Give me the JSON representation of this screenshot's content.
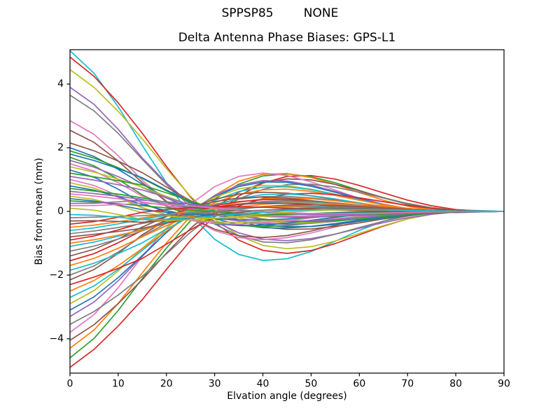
{
  "figure": {
    "suptitle": "SPPSP85        NONE",
    "title": "Delta Antenna Phase Biases: GPS-L1",
    "xlabel": "Elvation angle (degrees)",
    "ylabel": "Bias from mean (mm)"
  },
  "colors": {
    "background": "#ffffff",
    "axis": "#000000",
    "text": "#000000"
  },
  "chart_data": {
    "type": "line",
    "suptitle": "SPPSP85        NONE",
    "title": "Delta Antenna Phase Biases: GPS-L1",
    "xlabel": "Elvation angle (degrees)",
    "ylabel": "Bias from mean (mm)",
    "xlim": [
      0,
      90
    ],
    "ylim": [
      -5.08,
      5.08
    ],
    "xticks": [
      0,
      10,
      20,
      30,
      40,
      50,
      60,
      70,
      80,
      90
    ],
    "yticks": [
      -4,
      -2,
      0,
      2,
      4
    ],
    "grid": false,
    "legend": false,
    "n_series": 60,
    "x_sample_step_deg": 5,
    "line_width": 1.7,
    "palette": [
      "#1f77b4",
      "#ff7f0e",
      "#2ca02c",
      "#d62728",
      "#9467bd",
      "#8c564b",
      "#e377c2",
      "#7f7f7f",
      "#bcbd22",
      "#17becf"
    ],
    "description": "Approximately 60 unlabeled per-satellite delta antenna phase bias curves. Each curve begins at its start_bias (mm) at 0 deg elevation, crosses zero near 25-35 deg, overshoots with opposite sign to roughly -0.26 x start_bias near 45-50 deg (upper envelope about +1.3 mm, lower envelope about -1.0 mm), then decays smoothly so that all curves converge to 0 mm at 90 deg.",
    "envelope": {
      "start_bias_range_mm": [
        -4.9,
        5.05
      ],
      "zero_crossing_deg": [
        25,
        35
      ],
      "opposite_bump_peak_deg": [
        40,
        50
      ],
      "upper_bump_peak_mm": 1.3,
      "lower_bump_peak_mm": -1.0,
      "bias_at_90deg_mm": 0
    },
    "series": [
      {
        "start_bias": 5.05,
        "color_index": 9
      },
      {
        "start_bias": -4.9,
        "color_index": 3
      },
      {
        "start_bias": 4.85,
        "color_index": 3
      },
      {
        "start_bias": -4.6,
        "color_index": 2
      },
      {
        "start_bias": 4.45,
        "color_index": 8
      },
      {
        "start_bias": -4.3,
        "color_index": 1
      },
      {
        "start_bias": 3.9,
        "color_index": 4
      },
      {
        "start_bias": -4.05,
        "color_index": 5
      },
      {
        "start_bias": 3.65,
        "color_index": 7
      },
      {
        "start_bias": -3.8,
        "color_index": 6
      },
      {
        "start_bias": 2.85,
        "color_index": 6
      },
      {
        "start_bias": -3.55,
        "color_index": 7
      },
      {
        "start_bias": 2.55,
        "color_index": 5
      },
      {
        "start_bias": -3.3,
        "color_index": 4
      },
      {
        "start_bias": 2.15,
        "color_index": 5
      },
      {
        "start_bias": -3.1,
        "color_index": 0
      },
      {
        "start_bias": 2.0,
        "color_index": 0
      },
      {
        "start_bias": -2.9,
        "color_index": 8
      },
      {
        "start_bias": 1.9,
        "color_index": 2
      },
      {
        "start_bias": -2.7,
        "color_index": 9
      },
      {
        "start_bias": 1.8,
        "color_index": 0
      },
      {
        "start_bias": -2.5,
        "color_index": 1
      },
      {
        "start_bias": 1.7,
        "color_index": 2
      },
      {
        "start_bias": -2.3,
        "color_index": 3
      },
      {
        "start_bias": 1.6,
        "color_index": 4
      },
      {
        "start_bias": -2.15,
        "color_index": 5
      },
      {
        "start_bias": 1.5,
        "color_index": 6
      },
      {
        "start_bias": -2.0,
        "color_index": 7
      },
      {
        "start_bias": 1.4,
        "color_index": 8
      },
      {
        "start_bias": -1.85,
        "color_index": 9
      },
      {
        "start_bias": 1.3,
        "color_index": 0
      },
      {
        "start_bias": -1.7,
        "color_index": 1
      },
      {
        "start_bias": 1.2,
        "color_index": 2
      },
      {
        "start_bias": -1.55,
        "color_index": 3
      },
      {
        "start_bias": 1.1,
        "color_index": 4
      },
      {
        "start_bias": -1.4,
        "color_index": 5
      },
      {
        "start_bias": 1.0,
        "color_index": 6
      },
      {
        "start_bias": -1.25,
        "color_index": 7
      },
      {
        "start_bias": 0.9,
        "color_index": 8
      },
      {
        "start_bias": -1.1,
        "color_index": 9
      },
      {
        "start_bias": 0.8,
        "color_index": 0
      },
      {
        "start_bias": -1.0,
        "color_index": 1
      },
      {
        "start_bias": 0.72,
        "color_index": 2
      },
      {
        "start_bias": -0.9,
        "color_index": 3
      },
      {
        "start_bias": 0.63,
        "color_index": 4
      },
      {
        "start_bias": -0.8,
        "color_index": 5
      },
      {
        "start_bias": 0.55,
        "color_index": 6
      },
      {
        "start_bias": -0.7,
        "color_index": 7
      },
      {
        "start_bias": 0.48,
        "color_index": 8
      },
      {
        "start_bias": -0.6,
        "color_index": 9
      },
      {
        "start_bias": 0.4,
        "color_index": 0
      },
      {
        "start_bias": -0.5,
        "color_index": 1
      },
      {
        "start_bias": 0.33,
        "color_index": 2
      },
      {
        "start_bias": -0.4,
        "color_index": 3
      },
      {
        "start_bias": 0.25,
        "color_index": 4
      },
      {
        "start_bias": -0.3,
        "color_index": 5
      },
      {
        "start_bias": 0.18,
        "color_index": 6
      },
      {
        "start_bias": -0.2,
        "color_index": 7
      },
      {
        "start_bias": 0.1,
        "color_index": 8
      },
      {
        "start_bias": -0.1,
        "color_index": 9
      }
    ]
  }
}
